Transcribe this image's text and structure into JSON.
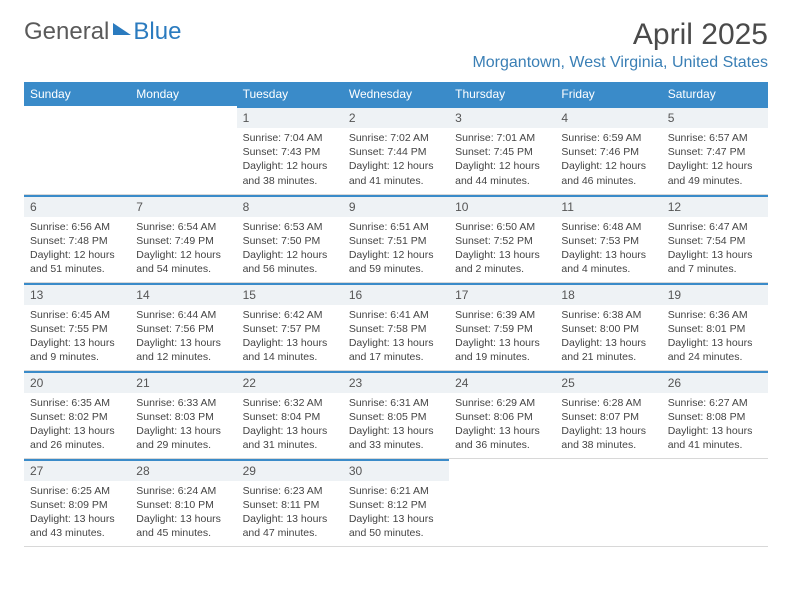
{
  "brand": {
    "part1": "General",
    "part2": "Blue"
  },
  "title": "April 2025",
  "location": "Morgantown, West Virginia, United States",
  "colors": {
    "header_bg": "#3a8bc9",
    "accent": "#2b7bbf",
    "daynum_bg": "#eef2f5",
    "text": "#444444",
    "background": "#ffffff"
  },
  "typography": {
    "month_title_fontsize": 30,
    "location_fontsize": 16,
    "weekday_fontsize": 12,
    "daynum_fontsize": 12,
    "body_fontsize": 10.5
  },
  "weekdays": [
    "Sunday",
    "Monday",
    "Tuesday",
    "Wednesday",
    "Thursday",
    "Friday",
    "Saturday"
  ],
  "weeks": [
    [
      null,
      null,
      {
        "n": "1",
        "sunrise": "7:04 AM",
        "sunset": "7:43 PM",
        "daylight": "12 hours and 38 minutes."
      },
      {
        "n": "2",
        "sunrise": "7:02 AM",
        "sunset": "7:44 PM",
        "daylight": "12 hours and 41 minutes."
      },
      {
        "n": "3",
        "sunrise": "7:01 AM",
        "sunset": "7:45 PM",
        "daylight": "12 hours and 44 minutes."
      },
      {
        "n": "4",
        "sunrise": "6:59 AM",
        "sunset": "7:46 PM",
        "daylight": "12 hours and 46 minutes."
      },
      {
        "n": "5",
        "sunrise": "6:57 AM",
        "sunset": "7:47 PM",
        "daylight": "12 hours and 49 minutes."
      }
    ],
    [
      {
        "n": "6",
        "sunrise": "6:56 AM",
        "sunset": "7:48 PM",
        "daylight": "12 hours and 51 minutes."
      },
      {
        "n": "7",
        "sunrise": "6:54 AM",
        "sunset": "7:49 PM",
        "daylight": "12 hours and 54 minutes."
      },
      {
        "n": "8",
        "sunrise": "6:53 AM",
        "sunset": "7:50 PM",
        "daylight": "12 hours and 56 minutes."
      },
      {
        "n": "9",
        "sunrise": "6:51 AM",
        "sunset": "7:51 PM",
        "daylight": "12 hours and 59 minutes."
      },
      {
        "n": "10",
        "sunrise": "6:50 AM",
        "sunset": "7:52 PM",
        "daylight": "13 hours and 2 minutes."
      },
      {
        "n": "11",
        "sunrise": "6:48 AM",
        "sunset": "7:53 PM",
        "daylight": "13 hours and 4 minutes."
      },
      {
        "n": "12",
        "sunrise": "6:47 AM",
        "sunset": "7:54 PM",
        "daylight": "13 hours and 7 minutes."
      }
    ],
    [
      {
        "n": "13",
        "sunrise": "6:45 AM",
        "sunset": "7:55 PM",
        "daylight": "13 hours and 9 minutes."
      },
      {
        "n": "14",
        "sunrise": "6:44 AM",
        "sunset": "7:56 PM",
        "daylight": "13 hours and 12 minutes."
      },
      {
        "n": "15",
        "sunrise": "6:42 AM",
        "sunset": "7:57 PM",
        "daylight": "13 hours and 14 minutes."
      },
      {
        "n": "16",
        "sunrise": "6:41 AM",
        "sunset": "7:58 PM",
        "daylight": "13 hours and 17 minutes."
      },
      {
        "n": "17",
        "sunrise": "6:39 AM",
        "sunset": "7:59 PM",
        "daylight": "13 hours and 19 minutes."
      },
      {
        "n": "18",
        "sunrise": "6:38 AM",
        "sunset": "8:00 PM",
        "daylight": "13 hours and 21 minutes."
      },
      {
        "n": "19",
        "sunrise": "6:36 AM",
        "sunset": "8:01 PM",
        "daylight": "13 hours and 24 minutes."
      }
    ],
    [
      {
        "n": "20",
        "sunrise": "6:35 AM",
        "sunset": "8:02 PM",
        "daylight": "13 hours and 26 minutes."
      },
      {
        "n": "21",
        "sunrise": "6:33 AM",
        "sunset": "8:03 PM",
        "daylight": "13 hours and 29 minutes."
      },
      {
        "n": "22",
        "sunrise": "6:32 AM",
        "sunset": "8:04 PM",
        "daylight": "13 hours and 31 minutes."
      },
      {
        "n": "23",
        "sunrise": "6:31 AM",
        "sunset": "8:05 PM",
        "daylight": "13 hours and 33 minutes."
      },
      {
        "n": "24",
        "sunrise": "6:29 AM",
        "sunset": "8:06 PM",
        "daylight": "13 hours and 36 minutes."
      },
      {
        "n": "25",
        "sunrise": "6:28 AM",
        "sunset": "8:07 PM",
        "daylight": "13 hours and 38 minutes."
      },
      {
        "n": "26",
        "sunrise": "6:27 AM",
        "sunset": "8:08 PM",
        "daylight": "13 hours and 41 minutes."
      }
    ],
    [
      {
        "n": "27",
        "sunrise": "6:25 AM",
        "sunset": "8:09 PM",
        "daylight": "13 hours and 43 minutes."
      },
      {
        "n": "28",
        "sunrise": "6:24 AM",
        "sunset": "8:10 PM",
        "daylight": "13 hours and 45 minutes."
      },
      {
        "n": "29",
        "sunrise": "6:23 AM",
        "sunset": "8:11 PM",
        "daylight": "13 hours and 47 minutes."
      },
      {
        "n": "30",
        "sunrise": "6:21 AM",
        "sunset": "8:12 PM",
        "daylight": "13 hours and 50 minutes."
      },
      null,
      null,
      null
    ]
  ],
  "labels": {
    "sunrise": "Sunrise:",
    "sunset": "Sunset:",
    "daylight": "Daylight:"
  }
}
